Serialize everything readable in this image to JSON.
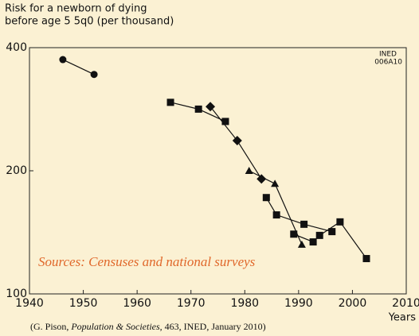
{
  "chart_data": {
    "type": "line",
    "title_lines": [
      "Risk for a newborn of dying",
      "before age 5 5q0 (per thousand)"
    ],
    "code_lines": [
      "INED",
      "006A10"
    ],
    "annotation": "Sources: Censuses and national surveys",
    "x_label": "Years",
    "source_parts": [
      "(G. Pison, ",
      "Population & Societies",
      ", 463, INED, January 2010)"
    ],
    "xlim": [
      1940,
      2010
    ],
    "xticks": [
      1940,
      1950,
      1960,
      1970,
      1980,
      1990,
      2000,
      2010
    ],
    "ylim": [
      100,
      400
    ],
    "yticks": [
      100,
      200,
      400
    ],
    "log_y": true,
    "series": [
      {
        "marker": "circle",
        "color": "#111111",
        "x": [
          1946.2,
          1952
        ],
        "values": [
          374,
          344
        ]
      },
      {
        "marker": "square",
        "color": "#111111",
        "x": [
          1966.2,
          1971.4,
          1976.4
        ],
        "values": [
          294,
          283,
          264
        ]
      },
      {
        "marker": "diamond",
        "color": "#111111",
        "x": [
          1973.6,
          1978.6,
          1983.1
        ],
        "values": [
          287,
          237,
          191
        ]
      },
      {
        "marker": "triangle",
        "color": "#111111",
        "x": [
          1980.8,
          1985.6,
          1990.6
        ],
        "values": [
          200,
          186,
          132
        ]
      },
      {
        "marker": "square",
        "color": "#111111",
        "x": [
          1984,
          1985.9,
          1991,
          1996.2
        ],
        "values": [
          172,
          156,
          148,
          142
        ]
      },
      {
        "marker": "square",
        "color": "#111111",
        "x": [
          1989.1,
          1992.7,
          1993.9,
          1997.7,
          2002.6
        ],
        "values": [
          140,
          134,
          139,
          150,
          122
        ]
      }
    ]
  }
}
